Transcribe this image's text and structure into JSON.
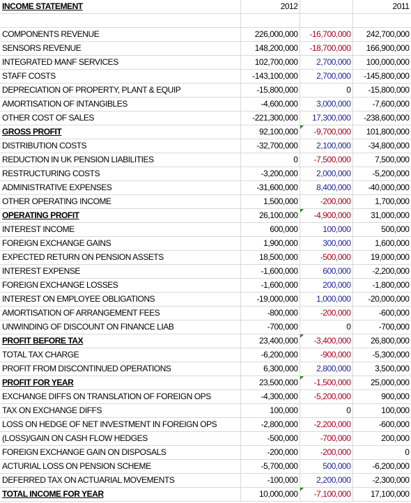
{
  "header": {
    "title": "INCOME STATEMENT",
    "col_current": "2012",
    "col_prior": "2011"
  },
  "rows": [
    {
      "label": "COMPONENTS REVENUE",
      "current": "226,000,000",
      "variance": "-16,700,000",
      "prior": "242,700,000"
    },
    {
      "label": "SENSORS REVENUE",
      "current": "148,200,000",
      "variance": "-18,700,000",
      "prior": "166,900,000"
    },
    {
      "label": "INTEGRATED MANF SERVICES",
      "current": "102,700,000",
      "variance": "2,700,000",
      "prior": "100,000,000"
    },
    {
      "label": "STAFF COSTS",
      "current": "-143,100,000",
      "variance": "2,700,000",
      "prior": "-145,800,000"
    },
    {
      "label": "DEPRECIATION OF PROPERTY, PLANT & EQUIP",
      "current": "-15,800,000",
      "variance": "0",
      "prior": "-15,800,000"
    },
    {
      "label": "AMORTISATION OF INTANGIBLES",
      "current": "-4,600,000",
      "variance": "3,000,000",
      "prior": "-7,600,000"
    },
    {
      "label": "OTHER COST OF SALES",
      "current": "-221,300,000",
      "variance": "17,300,000",
      "prior": "-238,600,000"
    },
    {
      "label": "GROSS PROFIT",
      "current": "92,100,000",
      "variance": "-9,700,000",
      "prior": "101,800,000"
    },
    {
      "label": "DISTRIBUTION COSTS",
      "current": "-32,700,000",
      "variance": "2,100,000",
      "prior": "-34,800,000"
    },
    {
      "label": "REDUCTION IN UK PENSION LIABILITIES",
      "current": "0",
      "variance": "-7,500,000",
      "prior": "7,500,000"
    },
    {
      "label": "RESTRUCTURING COSTS",
      "current": "-3,200,000",
      "variance": "2,000,000",
      "prior": "-5,200,000"
    },
    {
      "label": "ADMINISTRATIVE EXPENSES",
      "current": "-31,600,000",
      "variance": "8,400,000",
      "prior": "-40,000,000"
    },
    {
      "label": "OTHER OPERATING INCOME",
      "current": "1,500,000",
      "variance": "-200,000",
      "prior": "1,700,000"
    },
    {
      "label": "OPERATING PROFIT",
      "current": "26,100,000",
      "variance": "-4,900,000",
      "prior": "31,000,000"
    },
    {
      "label": "INTEREST INCOME",
      "current": "600,000",
      "variance": "100,000",
      "prior": "500,000"
    },
    {
      "label": "FOREIGN EXCHANGE GAINS",
      "current": "1,900,000",
      "variance": "300,000",
      "prior": "1,600,000"
    },
    {
      "label": "EXPECTED RETURN ON PENSION ASSETS",
      "current": "18,500,000",
      "variance": "-500,000",
      "prior": "19,000,000"
    },
    {
      "label": "INTEREST EXPENSE",
      "current": "-1,600,000",
      "variance": "600,000",
      "prior": "-2,200,000"
    },
    {
      "label": "FOREIGN EXCHANGE LOSSES",
      "current": "-1,600,000",
      "variance": "200,000",
      "prior": "-1,800,000"
    },
    {
      "label": "INTEREST ON EMPLOYEE OBLIGATIONS",
      "current": "-19,000,000",
      "variance": "1,000,000",
      "prior": "-20,000,000"
    },
    {
      "label": "AMORTISATION OF ARRANGEMENT FEES",
      "current": "-800,000",
      "variance": "-200,000",
      "prior": "-600,000"
    },
    {
      "label": "UNWINDING OF DISCOUNT ON FINANCE LIAB",
      "current": "-700,000",
      "variance": "0",
      "prior": "-700,000"
    },
    {
      "label": "PROFIT BEFORE TAX",
      "current": "23,400,000",
      "variance": "-3,400,000",
      "prior": "26,800,000"
    },
    {
      "label": "TOTAL TAX CHARGE",
      "current": "-6,200,000",
      "variance": "-900,000",
      "prior": "-5,300,000"
    },
    {
      "label": "PROFIT FROM DISCONTINUED OPERATIONS",
      "current": "6,300,000",
      "variance": "2,800,000",
      "prior": "3,500,000"
    },
    {
      "label": "PROFIT FOR YEAR",
      "current": "23,500,000",
      "variance": "-1,500,000",
      "prior": "25,000,000"
    },
    {
      "label": "EXCHANGE DIFFS ON TRANSLATION OF FOREIGN OPS",
      "current": "-4,300,000",
      "variance": "-5,200,000",
      "prior": "900,000"
    },
    {
      "label": "TAX ON EXCHANGE DIFFS",
      "current": "100,000",
      "variance": "0",
      "prior": "100,000"
    },
    {
      "label": "LOSS ON HEDGE OF NET INVESTMENT IN FOREIGN OPS",
      "current": "-2,800,000",
      "variance": "-2,200,000",
      "prior": "-600,000"
    },
    {
      "label": "(LOSS)/GAIN ON CASH FLOW HEDGES",
      "current": "-500,000",
      "variance": "-700,000",
      "prior": "200,000"
    },
    {
      "label": "FOREIGN EXCHANGE GAIN ON DISPOSALS",
      "current": "-200,000",
      "variance": "-200,000",
      "prior": "0"
    },
    {
      "label": "ACTURIAL LOSS ON PENSION SCHEME",
      "current": "-5,700,000",
      "variance": "500,000",
      "prior": "-6,200,000"
    },
    {
      "label": "DEFERRED TAX ON ACTUARIAL MOVEMENTS",
      "current": "-100,000",
      "variance": "2,200,000",
      "prior": "-2,300,000"
    },
    {
      "label": "TOTAL INCOME FOR YEAR",
      "current": "10,000,000",
      "variance": "-7,100,000",
      "prior": "17,100,000"
    }
  ],
  "colors": {
    "negative_variance": "#a50021",
    "positive_variance": "#1f1f9b",
    "grid": "#d9d9d9",
    "error_flag": "#1e8a1e"
  }
}
